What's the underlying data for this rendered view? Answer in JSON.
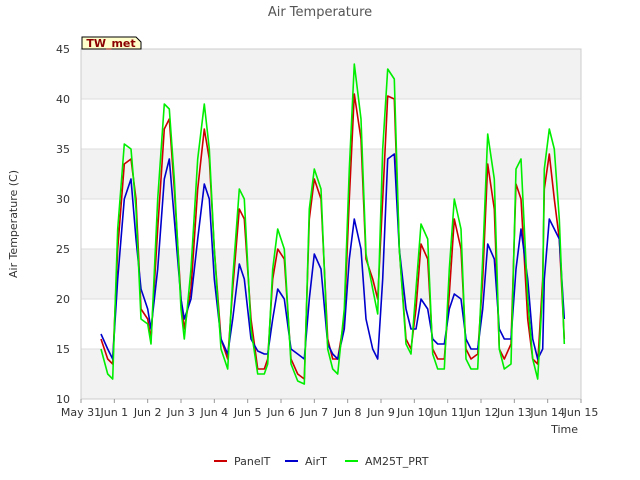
{
  "chart_data": {
    "type": "line",
    "title": "Air Temperature",
    "xlabel": "Time",
    "ylabel": "Air Temperature (C)",
    "tag": "TW_met",
    "xlim": [
      0,
      15
    ],
    "ylim": [
      10,
      45
    ],
    "x_ticks": [
      {
        "x": 0,
        "label": "May 31"
      },
      {
        "x": 1,
        "label": "Jun 1"
      },
      {
        "x": 2,
        "label": "Jun 2"
      },
      {
        "x": 3,
        "label": "Jun 3"
      },
      {
        "x": 4,
        "label": "Jun 4"
      },
      {
        "x": 5,
        "label": "Jun 5"
      },
      {
        "x": 6,
        "label": "Jun 6"
      },
      {
        "x": 7,
        "label": "Jun 7"
      },
      {
        "x": 8,
        "label": "Jun 8"
      },
      {
        "x": 9,
        "label": "Jun 9"
      },
      {
        "x": 10,
        "label": "Jun 10"
      },
      {
        "x": 11,
        "label": "Jun 11"
      },
      {
        "x": 12,
        "label": "Jun 12"
      },
      {
        "x": 13,
        "label": "Jun 13"
      },
      {
        "x": 14,
        "label": "Jun 14"
      },
      {
        "x": 15,
        "label": "Jun 15"
      }
    ],
    "y_ticks": [
      10,
      15,
      20,
      25,
      30,
      35,
      40,
      45
    ],
    "grid": true,
    "legend_position": "bottom",
    "series": [
      {
        "name": "PanelT",
        "color": "#cc0000",
        "x": [
          0.6,
          0.8,
          0.95,
          1.1,
          1.3,
          1.5,
          1.65,
          1.8,
          2.0,
          2.1,
          2.3,
          2.5,
          2.65,
          2.8,
          3.0,
          3.1,
          3.3,
          3.5,
          3.7,
          3.85,
          4.0,
          4.2,
          4.4,
          4.55,
          4.75,
          4.9,
          5.1,
          5.3,
          5.5,
          5.6,
          5.75,
          5.9,
          6.1,
          6.3,
          6.5,
          6.7,
          6.85,
          7.0,
          7.2,
          7.4,
          7.55,
          7.7,
          7.9,
          8.05,
          8.2,
          8.4,
          8.55,
          8.75,
          8.9,
          9.05,
          9.2,
          9.4,
          9.55,
          9.75,
          9.9,
          10.05,
          10.2,
          10.4,
          10.55,
          10.7,
          10.9,
          11.05,
          11.2,
          11.4,
          11.55,
          11.7,
          11.9,
          12.05,
          12.2,
          12.4,
          12.55,
          12.7,
          12.9,
          13.05,
          13.2,
          13.4,
          13.55,
          13.7,
          13.85
        ],
        "y": [
          16.0,
          14.0,
          13.5,
          25.0,
          33.5,
          34.0,
          30.0,
          19.0,
          18.0,
          16.0,
          27.0,
          37.0,
          38.0,
          31.0,
          20.0,
          17.0,
          21.0,
          31.0,
          37.0,
          34.0,
          25.0,
          16.0,
          14.0,
          21.0,
          29.0,
          28.0,
          18.0,
          13.0,
          13.0,
          14.0,
          22.0,
          25.0,
          24.0,
          14.0,
          12.5,
          12.0,
          28.0,
          32.0,
          30.0,
          16.0,
          14.0,
          14.0,
          18.0,
          30.0,
          40.5,
          36.0,
          24.0,
          22.0,
          20.0,
          30.0,
          40.3,
          40.0,
          25.0,
          16.0,
          15.0,
          19.0,
          25.5,
          24.0,
          15.0,
          14.0,
          14.0,
          20.5,
          28.0,
          25.0,
          15.0,
          14.0,
          14.5,
          22.0,
          33.5,
          29.0,
          15.0,
          14.0,
          15.5,
          31.5,
          30.0,
          18.0,
          14.0,
          13.5,
          22.0
        ],
        "x2": [
          13.9,
          14.05,
          14.2,
          14.35,
          14.5
        ],
        "y2": [
          31.0,
          34.5,
          30.0,
          26.0,
          16.0
        ]
      },
      {
        "name": "AirT",
        "color": "#0000cc",
        "x": [
          0.6,
          0.8,
          0.95,
          1.1,
          1.3,
          1.5,
          1.65,
          1.8,
          2.0,
          2.1,
          2.3,
          2.5,
          2.65,
          2.8,
          3.0,
          3.1,
          3.3,
          3.5,
          3.7,
          3.85,
          4.0,
          4.2,
          4.4,
          4.55,
          4.75,
          4.9,
          5.1,
          5.3,
          5.5,
          5.6,
          5.75,
          5.9,
          6.1,
          6.3,
          6.5,
          6.7,
          6.85,
          7.0,
          7.2,
          7.4,
          7.55,
          7.7,
          7.9,
          8.05,
          8.2,
          8.4,
          8.55,
          8.75,
          8.9,
          9.05,
          9.2,
          9.4,
          9.55,
          9.75,
          9.9,
          10.05,
          10.2,
          10.4,
          10.55,
          10.7,
          10.9,
          11.05,
          11.2,
          11.4,
          11.55,
          11.7,
          11.9,
          12.05,
          12.2,
          12.4,
          12.55,
          12.7,
          12.9,
          13.05,
          13.2,
          13.4,
          13.55,
          13.7,
          13.85
        ],
        "y": [
          16.5,
          15.0,
          14.0,
          22.0,
          30.0,
          32.0,
          26.0,
          21.0,
          19.0,
          17.0,
          23.0,
          32.0,
          34.0,
          28.0,
          20.0,
          18.0,
          20.0,
          26.0,
          31.5,
          30.0,
          22.0,
          16.0,
          14.5,
          18.0,
          23.5,
          22.0,
          16.0,
          14.8,
          14.5,
          14.5,
          18.0,
          21.0,
          20.0,
          15.0,
          14.5,
          14.0,
          20.0,
          24.5,
          23.0,
          15.5,
          14.5,
          14.0,
          17.0,
          24.0,
          28.0,
          25.0,
          18.0,
          15.0,
          14.0,
          22.0,
          34.0,
          34.5,
          25.0,
          19.0,
          17.0,
          17.0,
          20.0,
          19.0,
          16.0,
          15.5,
          15.5,
          19.0,
          20.5,
          20.0,
          16.0,
          15.0,
          15.0,
          19.0,
          25.5,
          24.0,
          17.0,
          16.0,
          16.0,
          23.0,
          27.0,
          22.0,
          16.0,
          14.0,
          15.0
        ],
        "x2": [
          13.9,
          14.05,
          14.2,
          14.35,
          14.5
        ],
        "y2": [
          22.0,
          28.0,
          27.0,
          26.0,
          18.0
        ]
      },
      {
        "name": "AM25T_PRT",
        "color": "#00ee00",
        "x": [
          0.6,
          0.8,
          0.95,
          1.1,
          1.3,
          1.5,
          1.65,
          1.8,
          2.0,
          2.1,
          2.3,
          2.5,
          2.65,
          2.8,
          3.0,
          3.1,
          3.3,
          3.5,
          3.7,
          3.85,
          4.0,
          4.2,
          4.4,
          4.55,
          4.75,
          4.9,
          5.1,
          5.3,
          5.5,
          5.6,
          5.75,
          5.9,
          6.1,
          6.3,
          6.5,
          6.7,
          6.85,
          7.0,
          7.2,
          7.4,
          7.55,
          7.7,
          7.9,
          8.05,
          8.2,
          8.4,
          8.55,
          8.75,
          8.9,
          9.05,
          9.2,
          9.4,
          9.55,
          9.75,
          9.9,
          10.05,
          10.2,
          10.4,
          10.55,
          10.7,
          10.9,
          11.05,
          11.2,
          11.4,
          11.55,
          11.7,
          11.9,
          12.05,
          12.2,
          12.4,
          12.55,
          12.7,
          12.9,
          13.05,
          13.2,
          13.4,
          13.55,
          13.7,
          13.85
        ],
        "y": [
          15.0,
          12.5,
          12.0,
          27.0,
          35.5,
          35.0,
          29.0,
          18.0,
          17.5,
          15.5,
          30.0,
          39.5,
          39.0,
          32.0,
          19.0,
          16.0,
          23.0,
          34.0,
          39.5,
          35.0,
          25.0,
          15.0,
          13.0,
          22.0,
          31.0,
          30.0,
          17.0,
          12.5,
          12.5,
          13.5,
          23.0,
          27.0,
          25.0,
          13.5,
          11.8,
          11.5,
          29.0,
          33.0,
          31.0,
          15.0,
          13.0,
          12.5,
          19.0,
          33.0,
          43.5,
          38.0,
          24.5,
          21.0,
          18.5,
          35.0,
          43.0,
          42.0,
          25.0,
          15.5,
          14.5,
          21.0,
          27.5,
          26.0,
          14.5,
          13.0,
          13.0,
          23.0,
          30.0,
          27.0,
          14.0,
          13.0,
          13.0,
          24.0,
          36.5,
          32.0,
          15.0,
          13.0,
          13.5,
          33.0,
          34.0,
          20.0,
          14.0,
          12.0,
          21.0
        ],
        "x2": [
          13.9,
          14.05,
          14.2,
          14.35,
          14.5
        ],
        "y2": [
          33.0,
          37.0,
          35.0,
          28.0,
          15.5
        ]
      }
    ]
  }
}
